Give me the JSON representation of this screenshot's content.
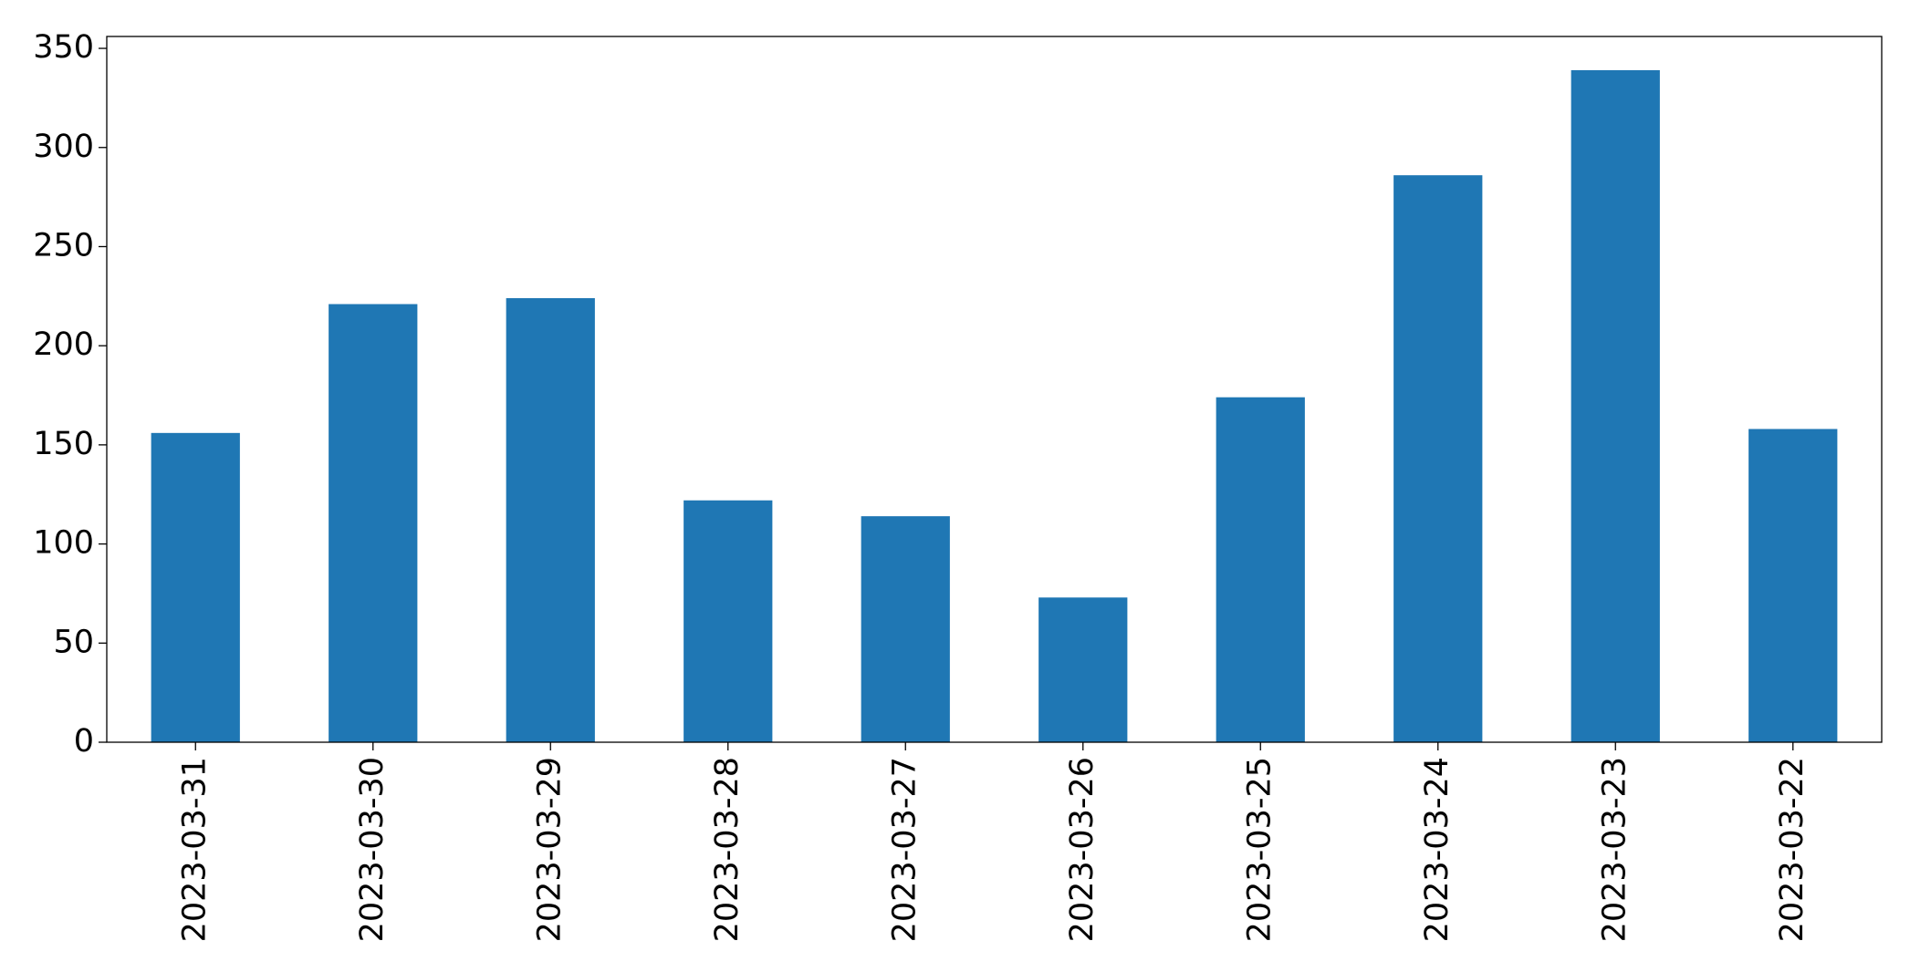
{
  "chart_data": {
    "type": "bar",
    "categories": [
      "2023-03-31",
      "2023-03-30",
      "2023-03-29",
      "2023-03-28",
      "2023-03-27",
      "2023-03-26",
      "2023-03-25",
      "2023-03-24",
      "2023-03-23",
      "2023-03-22"
    ],
    "values": [
      156,
      221,
      224,
      122,
      114,
      73,
      174,
      286,
      339,
      158
    ],
    "color": "#1f77b4",
    "ylim": [
      0,
      356
    ],
    "yticks": [
      0,
      50,
      100,
      150,
      200,
      250,
      300,
      350
    ],
    "grid": false
  }
}
